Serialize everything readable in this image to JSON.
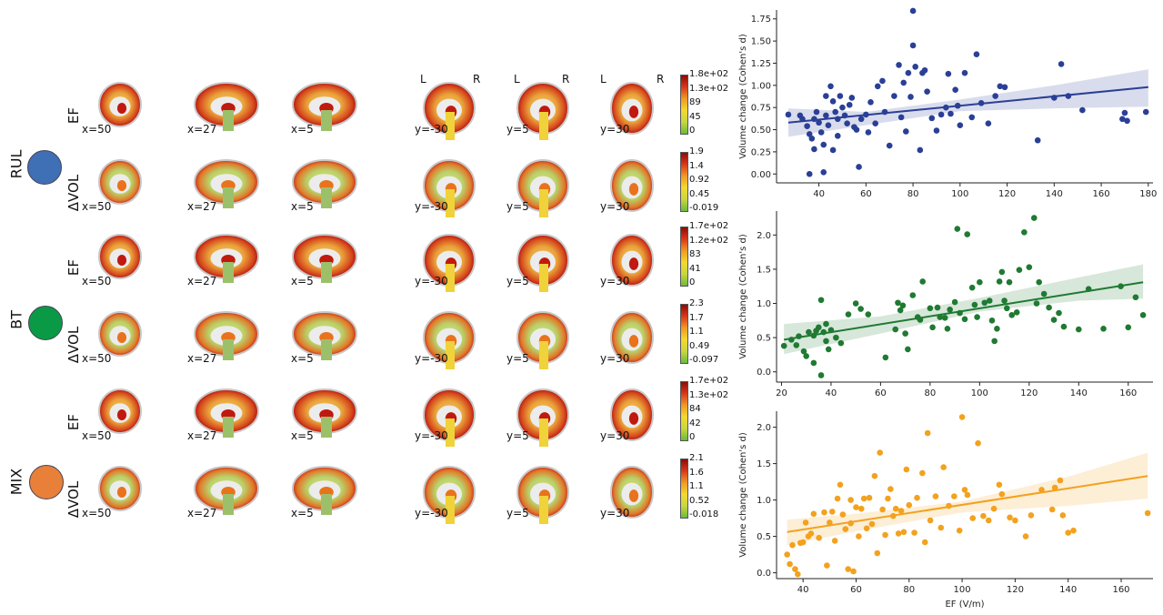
{
  "groups": [
    {
      "label": "RUL",
      "color": "#3f6fb5"
    },
    {
      "label": "BT",
      "color": "#0a9a45"
    },
    {
      "label": "MIX",
      "color": "#e8803a"
    }
  ],
  "row_labels": [
    "EF",
    "ΔVOL",
    "EF",
    "ΔVOL",
    "EF",
    "ΔVOL"
  ],
  "slice_labels": [
    "x=50",
    "x=27",
    "x=5",
    "y=-30",
    "y=5",
    "y=30"
  ],
  "lr_labels": {
    "left": "L",
    "right": "R"
  },
  "colorbars": [
    {
      "ticks": [
        "1.8e+02",
        "1.3e+02",
        "89",
        "45",
        "0"
      ]
    },
    {
      "ticks": [
        "1.9",
        "1.4",
        "0.92",
        "0.45",
        "-0.019"
      ]
    },
    {
      "ticks": [
        "1.7e+02",
        "1.2e+02",
        "83",
        "41",
        "0"
      ]
    },
    {
      "ticks": [
        "2.3",
        "1.7",
        "1.1",
        "0.49",
        "-0.097"
      ]
    },
    {
      "ticks": [
        "1.7e+02",
        "1.3e+02",
        "84",
        "42",
        "0"
      ]
    },
    {
      "ticks": [
        "2.1",
        "1.6",
        "1.1",
        "0.52",
        "-0.018"
      ]
    }
  ],
  "colors": {
    "blue": "#2a3f96",
    "green": "#1f7a32",
    "orange": "#f2a21e"
  },
  "chart_data": [
    {
      "type": "scatter",
      "series_color": "#2a3f96",
      "ylabel": "Volume change (Cohen's d)",
      "xlabel": "",
      "xlim": [
        22,
        182
      ],
      "ylim": [
        -0.1,
        1.85
      ],
      "xticks": [
        40,
        60,
        80,
        100,
        120,
        140,
        160,
        180
      ],
      "yticks": [
        0.0,
        0.25,
        0.5,
        0.75,
        1.0,
        1.25,
        1.5,
        1.75
      ],
      "ytick_labels": [
        "0.00",
        "0.25",
        "0.50",
        "0.75",
        "1.00",
        "1.25",
        "1.50",
        "1.75"
      ],
      "fit": {
        "x": [
          27,
          180
        ],
        "y": [
          0.58,
          0.98
        ]
      },
      "band": {
        "x": [
          27,
          60,
          100,
          140,
          180
        ],
        "upper": [
          0.74,
          0.7,
          0.84,
          1.0,
          1.18
        ],
        "lower": [
          0.42,
          0.55,
          0.71,
          0.74,
          0.76
        ]
      },
      "points": [
        [
          27,
          0.67
        ],
        [
          32,
          0.66
        ],
        [
          33,
          0.62
        ],
        [
          35,
          0.54
        ],
        [
          36,
          0.45
        ],
        [
          36,
          0.0
        ],
        [
          37,
          0.4
        ],
        [
          38,
          0.62
        ],
        [
          38,
          0.28
        ],
        [
          39,
          0.7
        ],
        [
          40,
          0.58
        ],
        [
          41,
          0.47
        ],
        [
          42,
          0.02
        ],
        [
          42,
          0.33
        ],
        [
          43,
          0.88
        ],
        [
          43,
          0.66
        ],
        [
          44,
          0.55
        ],
        [
          45,
          0.99
        ],
        [
          46,
          0.82
        ],
        [
          46,
          0.27
        ],
        [
          47,
          0.7
        ],
        [
          48,
          0.62
        ],
        [
          48,
          0.43
        ],
        [
          49,
          0.88
        ],
        [
          50,
          0.75
        ],
        [
          51,
          0.66
        ],
        [
          52,
          0.57
        ],
        [
          53,
          0.78
        ],
        [
          54,
          0.86
        ],
        [
          55,
          0.53
        ],
        [
          56,
          0.5
        ],
        [
          57,
          0.08
        ],
        [
          58,
          0.62
        ],
        [
          60,
          0.67
        ],
        [
          61,
          0.47
        ],
        [
          62,
          0.81
        ],
        [
          64,
          0.57
        ],
        [
          65,
          0.99
        ],
        [
          67,
          1.05
        ],
        [
          68,
          0.7
        ],
        [
          70,
          0.32
        ],
        [
          72,
          0.88
        ],
        [
          74,
          1.23
        ],
        [
          75,
          0.64
        ],
        [
          76,
          1.03
        ],
        [
          77,
          0.48
        ],
        [
          78,
          1.14
        ],
        [
          79,
          0.87
        ],
        [
          80,
          1.84
        ],
        [
          80,
          1.45
        ],
        [
          81,
          1.21
        ],
        [
          83,
          0.27
        ],
        [
          84,
          1.14
        ],
        [
          85,
          1.17
        ],
        [
          86,
          0.93
        ],
        [
          88,
          0.63
        ],
        [
          90,
          0.49
        ],
        [
          92,
          0.67
        ],
        [
          94,
          0.75
        ],
        [
          95,
          1.13
        ],
        [
          96,
          0.68
        ],
        [
          98,
          0.95
        ],
        [
          99,
          0.77
        ],
        [
          100,
          0.55
        ],
        [
          102,
          1.14
        ],
        [
          105,
          0.64
        ],
        [
          107,
          1.35
        ],
        [
          109,
          0.8
        ],
        [
          112,
          0.57
        ],
        [
          115,
          0.88
        ],
        [
          117,
          0.99
        ],
        [
          119,
          0.98
        ],
        [
          133,
          0.38
        ],
        [
          140,
          0.86
        ],
        [
          143,
          1.24
        ],
        [
          146,
          0.88
        ],
        [
          152,
          0.72
        ],
        [
          169,
          0.62
        ],
        [
          170,
          0.69
        ],
        [
          171,
          0.6
        ],
        [
          179,
          0.7
        ]
      ]
    },
    {
      "type": "scatter",
      "series_color": "#1f7a32",
      "ylabel": "Volume change (Cohen's d)",
      "xlabel": "",
      "xlim": [
        18,
        170
      ],
      "ylim": [
        -0.15,
        2.35
      ],
      "xticks": [
        20,
        40,
        60,
        80,
        100,
        120,
        140,
        160
      ],
      "yticks": [
        0.0,
        0.5,
        1.0,
        1.5,
        2.0
      ],
      "ytick_labels": [
        "0.0",
        "0.5",
        "1.0",
        "1.5",
        "2.0"
      ],
      "fit": {
        "x": [
          21,
          166
        ],
        "y": [
          0.47,
          1.31
        ]
      },
      "band": {
        "x": [
          21,
          60,
          100,
          140,
          166
        ],
        "upper": [
          0.7,
          0.81,
          1.08,
          1.38,
          1.57
        ],
        "lower": [
          0.26,
          0.56,
          0.88,
          1.04,
          1.07
        ]
      },
      "points": [
        [
          21,
          0.38
        ],
        [
          24,
          0.47
        ],
        [
          26,
          0.39
        ],
        [
          27,
          0.52
        ],
        [
          29,
          0.3
        ],
        [
          30,
          0.23
        ],
        [
          31,
          0.58
        ],
        [
          33,
          0.13
        ],
        [
          33,
          0.53
        ],
        [
          34,
          0.6
        ],
        [
          35,
          0.65
        ],
        [
          36,
          -0.05
        ],
        [
          36,
          1.05
        ],
        [
          37,
          0.58
        ],
        [
          38,
          0.7
        ],
        [
          38,
          0.45
        ],
        [
          39,
          0.33
        ],
        [
          40,
          0.61
        ],
        [
          42,
          0.5
        ],
        [
          44,
          0.42
        ],
        [
          47,
          0.84
        ],
        [
          50,
          1.0
        ],
        [
          52,
          0.92
        ],
        [
          55,
          0.84
        ],
        [
          62,
          0.21
        ],
        [
          66,
          0.62
        ],
        [
          67,
          1.01
        ],
        [
          68,
          0.9
        ],
        [
          69,
          0.97
        ],
        [
          70,
          0.56
        ],
        [
          71,
          0.33
        ],
        [
          73,
          1.12
        ],
        [
          75,
          0.8
        ],
        [
          76,
          0.76
        ],
        [
          77,
          1.32
        ],
        [
          80,
          0.93
        ],
        [
          81,
          0.65
        ],
        [
          83,
          0.94
        ],
        [
          84,
          0.8
        ],
        [
          86,
          0.79
        ],
        [
          87,
          0.63
        ],
        [
          88,
          0.91
        ],
        [
          90,
          1.02
        ],
        [
          91,
          2.09
        ],
        [
          92,
          0.86
        ],
        [
          94,
          0.77
        ],
        [
          95,
          2.01
        ],
        [
          97,
          1.23
        ],
        [
          98,
          0.98
        ],
        [
          99,
          0.8
        ],
        [
          100,
          1.31
        ],
        [
          102,
          1.01
        ],
        [
          104,
          1.04
        ],
        [
          105,
          0.75
        ],
        [
          106,
          0.45
        ],
        [
          107,
          0.63
        ],
        [
          108,
          1.32
        ],
        [
          109,
          1.46
        ],
        [
          110,
          1.04
        ],
        [
          111,
          0.93
        ],
        [
          112,
          1.31
        ],
        [
          113,
          0.83
        ],
        [
          115,
          0.87
        ],
        [
          116,
          1.49
        ],
        [
          118,
          2.04
        ],
        [
          120,
          1.53
        ],
        [
          122,
          2.25
        ],
        [
          123,
          1.0
        ],
        [
          124,
          1.31
        ],
        [
          126,
          1.14
        ],
        [
          128,
          0.94
        ],
        [
          130,
          0.76
        ],
        [
          132,
          0.86
        ],
        [
          134,
          0.66
        ],
        [
          140,
          0.62
        ],
        [
          144,
          1.21
        ],
        [
          150,
          0.63
        ],
        [
          157,
          1.25
        ],
        [
          160,
          0.65
        ],
        [
          163,
          1.09
        ],
        [
          166,
          0.83
        ]
      ]
    },
    {
      "type": "scatter",
      "series_color": "#f2a21e",
      "ylabel": "Volume change (Cohen's d)",
      "xlabel": "EF (V/m)",
      "xlim": [
        30,
        172
      ],
      "ylim": [
        -0.08,
        2.22
      ],
      "xticks": [
        40,
        60,
        80,
        100,
        120,
        140,
        160
      ],
      "yticks": [
        0.0,
        0.5,
        1.0,
        1.5,
        2.0
      ],
      "ytick_labels": [
        "0.0",
        "0.5",
        "1.0",
        "1.5",
        "2.0"
      ],
      "fit": {
        "x": [
          34,
          170
        ],
        "y": [
          0.56,
          1.33
        ]
      },
      "band": {
        "x": [
          34,
          60,
          100,
          140,
          170
        ],
        "upper": [
          0.73,
          0.81,
          0.98,
          1.32,
          1.65
        ],
        "lower": [
          0.38,
          0.57,
          0.83,
          0.92,
          1.02
        ]
      },
      "points": [
        [
          34,
          0.25
        ],
        [
          35,
          0.12
        ],
        [
          36,
          0.38
        ],
        [
          37,
          0.05
        ],
        [
          38,
          -0.02
        ],
        [
          39,
          0.41
        ],
        [
          40,
          0.42
        ],
        [
          41,
          0.69
        ],
        [
          42,
          0.5
        ],
        [
          43,
          0.54
        ],
        [
          44,
          0.81
        ],
        [
          46,
          0.48
        ],
        [
          48,
          0.83
        ],
        [
          49,
          0.1
        ],
        [
          50,
          0.69
        ],
        [
          51,
          0.84
        ],
        [
          52,
          0.44
        ],
        [
          53,
          1.02
        ],
        [
          54,
          1.21
        ],
        [
          55,
          0.8
        ],
        [
          56,
          0.6
        ],
        [
          57,
          0.05
        ],
        [
          58,
          0.68
        ],
        [
          58,
          1.0
        ],
        [
          59,
          0.02
        ],
        [
          60,
          0.9
        ],
        [
          61,
          0.5
        ],
        [
          62,
          0.88
        ],
        [
          63,
          1.02
        ],
        [
          64,
          0.61
        ],
        [
          65,
          1.03
        ],
        [
          66,
          0.67
        ],
        [
          67,
          1.33
        ],
        [
          68,
          0.27
        ],
        [
          69,
          1.65
        ],
        [
          70,
          0.87
        ],
        [
          71,
          0.52
        ],
        [
          72,
          1.02
        ],
        [
          73,
          1.15
        ],
        [
          74,
          0.78
        ],
        [
          75,
          0.88
        ],
        [
          76,
          0.54
        ],
        [
          77,
          0.85
        ],
        [
          78,
          0.56
        ],
        [
          79,
          1.42
        ],
        [
          80,
          0.93
        ],
        [
          82,
          0.55
        ],
        [
          83,
          1.03
        ],
        [
          85,
          1.37
        ],
        [
          86,
          0.42
        ],
        [
          87,
          1.92
        ],
        [
          88,
          0.72
        ],
        [
          90,
          1.05
        ],
        [
          92,
          0.62
        ],
        [
          93,
          1.45
        ],
        [
          95,
          0.92
        ],
        [
          97,
          1.05
        ],
        [
          99,
          0.58
        ],
        [
          100,
          2.14
        ],
        [
          101,
          1.14
        ],
        [
          102,
          1.07
        ],
        [
          104,
          0.75
        ],
        [
          106,
          1.78
        ],
        [
          108,
          0.78
        ],
        [
          110,
          0.72
        ],
        [
          112,
          0.88
        ],
        [
          114,
          1.21
        ],
        [
          115,
          1.08
        ],
        [
          118,
          0.76
        ],
        [
          120,
          0.72
        ],
        [
          124,
          0.5
        ],
        [
          126,
          0.79
        ],
        [
          130,
          1.14
        ],
        [
          134,
          0.87
        ],
        [
          135,
          1.17
        ],
        [
          137,
          1.27
        ],
        [
          138,
          0.79
        ],
        [
          140,
          0.55
        ],
        [
          142,
          0.58
        ],
        [
          170,
          0.82
        ]
      ]
    }
  ]
}
